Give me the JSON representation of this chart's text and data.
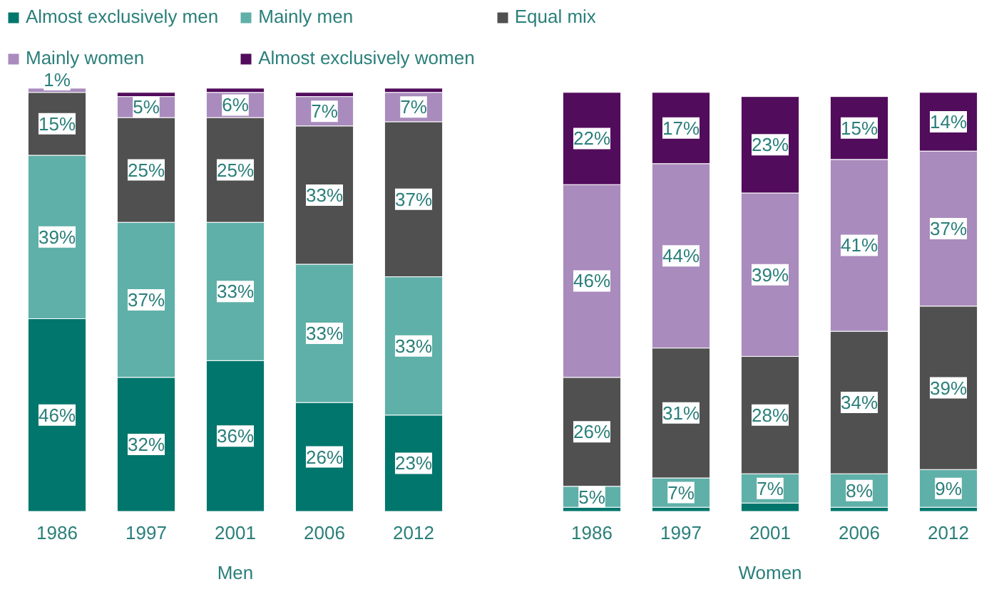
{
  "chart_data": [
    {
      "type": "bar",
      "stacked": true,
      "xlabel": "Men",
      "categories": [
        "1986",
        "1997",
        "2001",
        "2006",
        "2012"
      ],
      "ylim": [
        0,
        101
      ],
      "tick_labels": "x",
      "grid": false,
      "legend": "top",
      "series": [
        {
          "name": "Almost exclusively men",
          "color": "#00766c",
          "values": [
            46,
            32,
            36,
            26,
            23
          ],
          "value_labels": [
            "46%",
            "32%",
            "36%",
            "26%",
            "23%"
          ]
        },
        {
          "name": "Mainly men",
          "color": "#5fb0a8",
          "values": [
            39,
            37,
            33,
            33,
            33
          ],
          "value_labels": [
            "39%",
            "37%",
            "33%",
            "33%",
            "33%"
          ]
        },
        {
          "name": "Equal mix",
          "color": "#505050",
          "values": [
            15,
            25,
            25,
            33,
            37
          ],
          "value_labels": [
            "15%",
            "25%",
            "25%",
            "33%",
            "37%"
          ]
        },
        {
          "name": "Mainly women",
          "color": "#a98bbd",
          "values": [
            1,
            5,
            6,
            7,
            7
          ],
          "value_labels": [
            "1%",
            "5%",
            "6%",
            "7%",
            "7%"
          ]
        },
        {
          "name": "Almost exclusively women",
          "color": "#520c5c",
          "values": [
            null,
            1,
            1,
            1,
            1
          ],
          "value_labels": [
            null,
            null,
            null,
            null,
            null
          ]
        }
      ]
    },
    {
      "type": "bar",
      "stacked": true,
      "xlabel": "Women",
      "categories": [
        "1986",
        "1997",
        "2001",
        "2006",
        "2012"
      ],
      "ylim": [
        0,
        101
      ],
      "tick_labels": "x",
      "grid": false,
      "series": [
        {
          "color": "#00766c",
          "values": [
            1,
            1,
            2,
            1,
            1
          ],
          "value_labels": [
            null,
            null,
            null,
            null,
            null
          ]
        },
        {
          "color": "#5fb0a8",
          "values": [
            5,
            7,
            7,
            8,
            9
          ],
          "value_labels": [
            "5%",
            "7%",
            "7%",
            "8%",
            "9%"
          ]
        },
        {
          "color": "#505050",
          "values": [
            26,
            31,
            28,
            34,
            39
          ],
          "value_labels": [
            "26%",
            "31%",
            "28%",
            "34%",
            "39%"
          ]
        },
        {
          "color": "#a98bbd",
          "values": [
            46,
            44,
            39,
            41,
            37
          ],
          "value_labels": [
            "46%",
            "44%",
            "39%",
            "41%",
            "37%"
          ]
        },
        {
          "color": "#520c5c",
          "values": [
            22,
            17,
            23,
            15,
            14
          ],
          "value_labels": [
            "22%",
            "17%",
            "23%",
            "15%",
            "14%"
          ]
        }
      ]
    }
  ]
}
